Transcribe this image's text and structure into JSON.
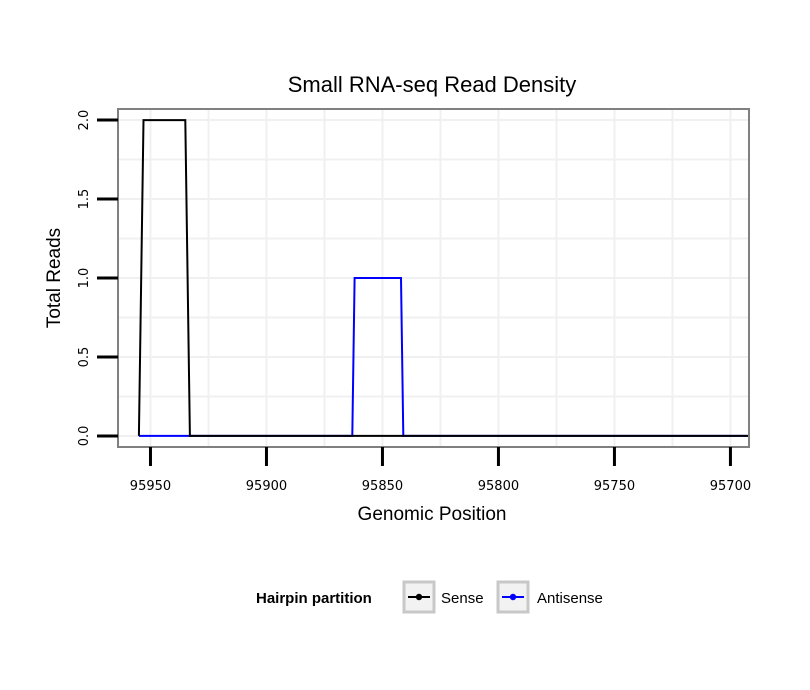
{
  "chart_data": {
    "type": "line",
    "title": "Small RNA-seq Read Density",
    "xlabel": "Genomic Position",
    "ylabel": "Total Reads",
    "x_reversed": true,
    "xlim": [
      95964,
      95692
    ],
    "ylim": [
      -0.07,
      2.07
    ],
    "x_ticks": [
      95950,
      95900,
      95850,
      95800,
      95750,
      95700
    ],
    "x_tick_labels": [
      "95950",
      "95900",
      "95850",
      "95800",
      "95750",
      "95700"
    ],
    "y_ticks": [
      0,
      0.5,
      1,
      1.5,
      2
    ],
    "y_tick_labels": [
      "0.0",
      "0.5",
      "1.0",
      "1.5",
      "2.0"
    ],
    "grid": true,
    "legend": {
      "title": "Hairpin partition",
      "position": "bottom"
    },
    "series": [
      {
        "name": "Sense",
        "color": "#000000",
        "x": [
          95955,
          95953,
          95935,
          95933,
          95692
        ],
        "y": [
          0,
          2,
          2,
          0,
          0
        ]
      },
      {
        "name": "Antisense",
        "color": "#0000ff",
        "x": [
          95955,
          95933,
          95863,
          95862,
          95842,
          95841,
          95692
        ],
        "y": [
          0,
          0,
          0,
          1,
          1,
          0,
          0
        ]
      }
    ]
  }
}
